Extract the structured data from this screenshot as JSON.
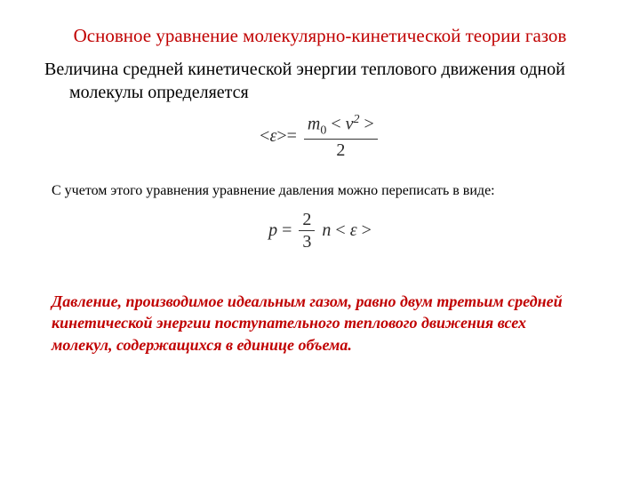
{
  "title": "Основное уравнение молекулярно-кинетической теории газов",
  "para1": "Величина средней кинетической энергии теплового движения одной молекулы определяется",
  "formula1": {
    "lhs_open": "<",
    "lhs_sym": "ε",
    "lhs_close": ">",
    "eq": "=",
    "num_m": "m",
    "num_sub": "0",
    "num_open": "<",
    "num_v": "v",
    "num_sup": "2",
    "num_close": ">",
    "den": "2"
  },
  "para2": "С учетом этого уравнения уравнение давления можно переписать в виде:",
  "formula2": {
    "p": "p",
    "eq": "=",
    "num": "2",
    "den": "3",
    "n": "n",
    "open": "<",
    "eps": "ε",
    "close": ">"
  },
  "conclusion": "Давление, производимое идеальным газом, равно двум третьим средней кинетической энергии поступательного теплового движения всех молекул, содержащихся в единице объема.",
  "colors": {
    "title": "#c00000",
    "text": "#000000",
    "formula": "#2a2a2a",
    "background": "#ffffff"
  },
  "fonts": {
    "family": "Times New Roman",
    "title_size": 21,
    "para1_size": 20,
    "para2_size": 16,
    "formula_size": 20,
    "conclusion_size": 18
  }
}
